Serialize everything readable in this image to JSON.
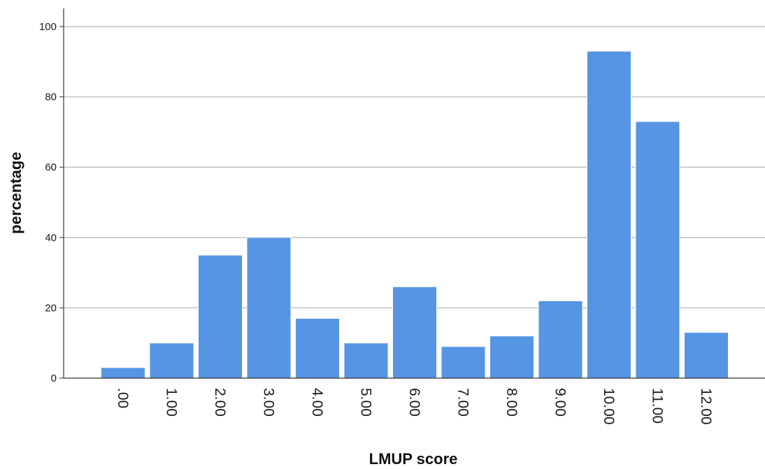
{
  "chart_data": {
    "type": "bar",
    "title": "",
    "xlabel": "LMUP score",
    "ylabel": "percentage",
    "categories": [
      ".00",
      "1.00",
      "2.00",
      "3.00",
      "4.00",
      "5.00",
      "6.00",
      "7.00",
      "8.00",
      "9.00",
      "10.00",
      "11.00",
      "12.00"
    ],
    "values": [
      3,
      10,
      35,
      40,
      17,
      10,
      26,
      9,
      12,
      22,
      93,
      73,
      13
    ],
    "ylim": [
      0,
      105
    ],
    "yticks": [
      0,
      20,
      40,
      60,
      80,
      100
    ],
    "ytick_labels": [
      "0",
      "20",
      "40",
      "60",
      "80",
      "100"
    ],
    "grid": true,
    "bar_color": "#5595e3",
    "bar_edge_color": "#ffffff",
    "grid_color": "#c0c0c0",
    "axis_color": "#333333"
  }
}
